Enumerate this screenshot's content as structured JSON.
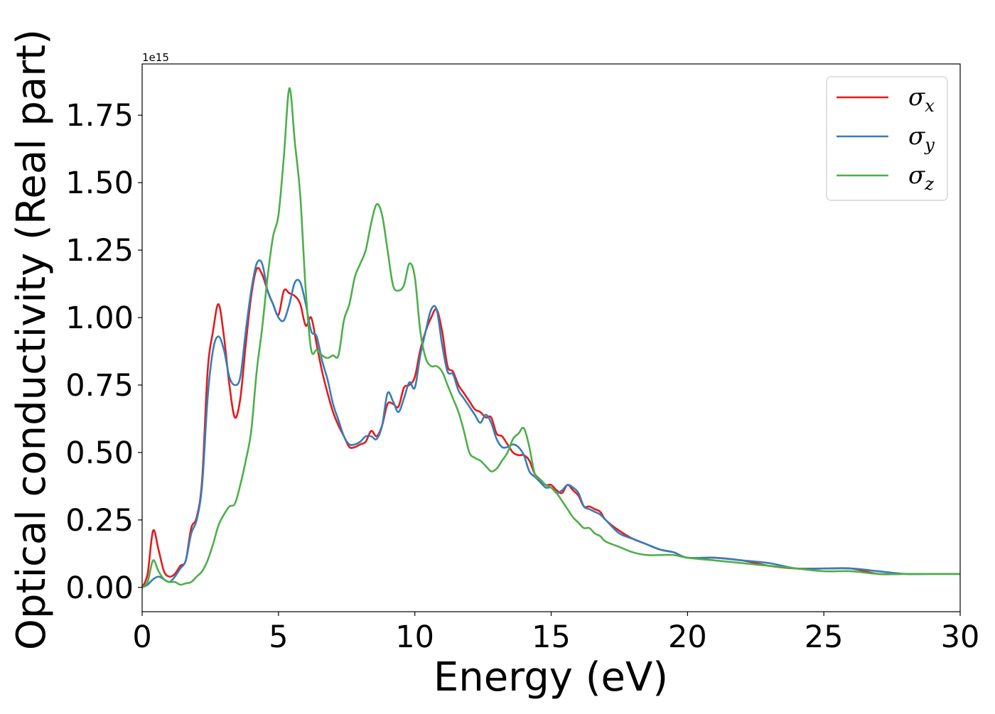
{
  "chart_data": {
    "type": "line",
    "xlabel": "Energy (eV)",
    "ylabel": "Optical conductivity (Real part)",
    "y_offset_label": "1e15",
    "y_scale_factor": 1000000000000000.0,
    "xlim": [
      0,
      30
    ],
    "ylim": [
      -0.09,
      1.94
    ],
    "x_ticks": [
      0,
      5,
      10,
      15,
      20,
      25,
      30
    ],
    "x_tick_labels": [
      "0",
      "5",
      "10",
      "15",
      "20",
      "25",
      "30"
    ],
    "y_ticks": [
      0.0,
      0.25,
      0.5,
      0.75,
      1.0,
      1.25,
      1.5,
      1.75
    ],
    "y_tick_labels": [
      "0.00",
      "0.25",
      "0.50",
      "0.75",
      "1.00",
      "1.25",
      "1.50",
      "1.75"
    ],
    "grid": false,
    "legend_position": "top-right",
    "series": [
      {
        "name": "σx",
        "legend_symbol": "σ",
        "legend_subscript": "x",
        "color": "#e41a1c",
        "x": [
          0,
          0.2,
          0.4,
          0.6,
          0.8,
          1.0,
          1.2,
          1.4,
          1.6,
          1.8,
          2.0,
          2.2,
          2.4,
          2.6,
          2.8,
          3.0,
          3.2,
          3.4,
          3.6,
          3.8,
          4.0,
          4.2,
          4.4,
          4.6,
          4.8,
          5.0,
          5.2,
          5.4,
          5.6,
          5.8,
          6.0,
          6.2,
          6.4,
          6.6,
          6.8,
          7.0,
          7.2,
          7.4,
          7.6,
          7.8,
          8.0,
          8.2,
          8.4,
          8.6,
          8.8,
          9.0,
          9.2,
          9.4,
          9.6,
          9.8,
          10.0,
          10.2,
          10.4,
          10.6,
          10.8,
          11.0,
          11.2,
          11.4,
          11.6,
          11.8,
          12.0,
          12.2,
          12.4,
          12.6,
          12.8,
          13.0,
          13.2,
          13.4,
          13.6,
          13.8,
          14.0,
          14.2,
          14.4,
          14.6,
          14.8,
          15.0,
          15.2,
          15.4,
          15.6,
          15.8,
          16.0,
          16.2,
          16.4,
          16.6,
          16.8,
          17.0,
          17.5,
          18.0,
          18.5,
          19.0,
          19.5,
          20.0,
          21.0,
          22.0,
          23.0,
          24.0,
          25.0,
          26.0,
          27.0,
          28.0,
          29.0,
          30.0
        ],
        "y": [
          0.0,
          0.05,
          0.21,
          0.14,
          0.06,
          0.04,
          0.05,
          0.08,
          0.1,
          0.22,
          0.26,
          0.4,
          0.8,
          0.95,
          1.05,
          0.93,
          0.75,
          0.63,
          0.7,
          0.9,
          1.08,
          1.18,
          1.16,
          1.1,
          1.05,
          1.01,
          1.1,
          1.09,
          1.08,
          1.05,
          0.97,
          1.0,
          0.9,
          0.8,
          0.72,
          0.65,
          0.6,
          0.56,
          0.52,
          0.52,
          0.53,
          0.54,
          0.58,
          0.56,
          0.6,
          0.68,
          0.68,
          0.67,
          0.74,
          0.75,
          0.78,
          0.88,
          0.95,
          1.0,
          1.03,
          0.95,
          0.82,
          0.8,
          0.75,
          0.72,
          0.69,
          0.66,
          0.65,
          0.63,
          0.63,
          0.57,
          0.56,
          0.53,
          0.5,
          0.49,
          0.49,
          0.47,
          0.42,
          0.4,
          0.38,
          0.38,
          0.36,
          0.35,
          0.38,
          0.36,
          0.34,
          0.3,
          0.3,
          0.29,
          0.28,
          0.25,
          0.21,
          0.18,
          0.16,
          0.14,
          0.13,
          0.11,
          0.11,
          0.1,
          0.08,
          0.07,
          0.07,
          0.07,
          0.05,
          0.05,
          0.05,
          0.05
        ]
      },
      {
        "name": "σy",
        "legend_symbol": "σ",
        "legend_subscript": "y",
        "color": "#377eb8",
        "x": [
          0,
          0.2,
          0.4,
          0.6,
          0.8,
          1.0,
          1.2,
          1.4,
          1.6,
          1.8,
          2.0,
          2.2,
          2.4,
          2.6,
          2.8,
          3.0,
          3.2,
          3.4,
          3.6,
          3.8,
          4.0,
          4.2,
          4.4,
          4.6,
          4.8,
          5.0,
          5.2,
          5.4,
          5.6,
          5.8,
          6.0,
          6.2,
          6.4,
          6.6,
          6.8,
          7.0,
          7.2,
          7.4,
          7.6,
          7.8,
          8.0,
          8.2,
          8.4,
          8.6,
          8.8,
          9.0,
          9.2,
          9.4,
          9.6,
          9.8,
          10.0,
          10.2,
          10.4,
          10.6,
          10.8,
          11.0,
          11.2,
          11.4,
          11.6,
          11.8,
          12.0,
          12.2,
          12.4,
          12.6,
          12.8,
          13.0,
          13.2,
          13.4,
          13.6,
          13.8,
          14.0,
          14.2,
          14.4,
          14.6,
          14.8,
          15.0,
          15.2,
          15.4,
          15.6,
          15.8,
          16.0,
          16.2,
          16.4,
          16.6,
          16.8,
          17.0,
          17.5,
          18.0,
          18.5,
          19.0,
          19.5,
          20.0,
          21.0,
          22.0,
          23.0,
          24.0,
          25.0,
          26.0,
          27.0,
          28.0,
          29.0,
          30.0
        ],
        "y": [
          0.0,
          0.01,
          0.03,
          0.04,
          0.03,
          0.02,
          0.04,
          0.07,
          0.1,
          0.2,
          0.25,
          0.38,
          0.7,
          0.88,
          0.93,
          0.88,
          0.78,
          0.75,
          0.78,
          0.95,
          1.1,
          1.2,
          1.2,
          1.1,
          1.05,
          1.0,
          0.99,
          1.05,
          1.13,
          1.13,
          1.05,
          0.95,
          0.93,
          0.84,
          0.77,
          0.68,
          0.62,
          0.56,
          0.53,
          0.53,
          0.54,
          0.56,
          0.56,
          0.55,
          0.6,
          0.72,
          0.69,
          0.65,
          0.7,
          0.76,
          0.74,
          0.86,
          0.95,
          1.03,
          1.03,
          0.9,
          0.8,
          0.79,
          0.73,
          0.7,
          0.67,
          0.64,
          0.61,
          0.64,
          0.61,
          0.55,
          0.52,
          0.52,
          0.53,
          0.52,
          0.49,
          0.43,
          0.41,
          0.39,
          0.37,
          0.37,
          0.35,
          0.36,
          0.38,
          0.37,
          0.35,
          0.3,
          0.29,
          0.28,
          0.27,
          0.25,
          0.2,
          0.18,
          0.16,
          0.14,
          0.13,
          0.11,
          0.11,
          0.1,
          0.09,
          0.07,
          0.07,
          0.07,
          0.06,
          0.05,
          0.05,
          0.05
        ]
      },
      {
        "name": "σz",
        "legend_symbol": "σ",
        "legend_subscript": "z",
        "color": "#4daf4a",
        "x": [
          0,
          0.2,
          0.4,
          0.6,
          0.8,
          1.0,
          1.2,
          1.4,
          1.6,
          1.8,
          2.0,
          2.2,
          2.4,
          2.6,
          2.8,
          3.0,
          3.2,
          3.4,
          3.6,
          3.8,
          4.0,
          4.2,
          4.4,
          4.6,
          4.8,
          5.0,
          5.2,
          5.4,
          5.6,
          5.8,
          6.0,
          6.2,
          6.4,
          6.6,
          6.8,
          7.0,
          7.2,
          7.4,
          7.6,
          7.8,
          8.0,
          8.2,
          8.4,
          8.6,
          8.8,
          9.0,
          9.2,
          9.4,
          9.6,
          9.8,
          10.0,
          10.2,
          10.4,
          10.6,
          10.8,
          11.0,
          11.2,
          11.4,
          11.6,
          11.8,
          12.0,
          12.2,
          12.4,
          12.6,
          12.8,
          13.0,
          13.2,
          13.4,
          13.6,
          13.8,
          14.0,
          14.2,
          14.4,
          14.6,
          14.8,
          15.0,
          15.2,
          15.4,
          15.6,
          15.8,
          16.0,
          16.2,
          16.4,
          16.6,
          16.8,
          17.0,
          17.5,
          18.0,
          18.5,
          19.0,
          19.5,
          20.0,
          21.0,
          22.0,
          23.0,
          24.0,
          25.0,
          26.0,
          27.0,
          28.0,
          29.0,
          30.0
        ],
        "y": [
          0.0,
          0.02,
          0.1,
          0.06,
          0.03,
          0.02,
          0.02,
          0.01,
          0.015,
          0.02,
          0.04,
          0.06,
          0.1,
          0.16,
          0.23,
          0.27,
          0.3,
          0.31,
          0.38,
          0.47,
          0.58,
          0.8,
          0.96,
          1.15,
          1.3,
          1.38,
          1.6,
          1.85,
          1.65,
          1.45,
          1.1,
          0.88,
          0.88,
          0.86,
          0.85,
          0.86,
          0.86,
          0.99,
          1.05,
          1.15,
          1.2,
          1.25,
          1.35,
          1.42,
          1.38,
          1.25,
          1.12,
          1.1,
          1.12,
          1.2,
          1.15,
          0.95,
          0.85,
          0.82,
          0.82,
          0.8,
          0.75,
          0.7,
          0.65,
          0.58,
          0.5,
          0.48,
          0.47,
          0.45,
          0.43,
          0.44,
          0.47,
          0.5,
          0.55,
          0.57,
          0.59,
          0.52,
          0.42,
          0.4,
          0.38,
          0.37,
          0.35,
          0.32,
          0.29,
          0.26,
          0.24,
          0.22,
          0.22,
          0.2,
          0.19,
          0.17,
          0.15,
          0.13,
          0.12,
          0.12,
          0.12,
          0.11,
          0.1,
          0.09,
          0.08,
          0.07,
          0.06,
          0.06,
          0.05,
          0.05,
          0.05,
          0.05
        ]
      }
    ]
  }
}
